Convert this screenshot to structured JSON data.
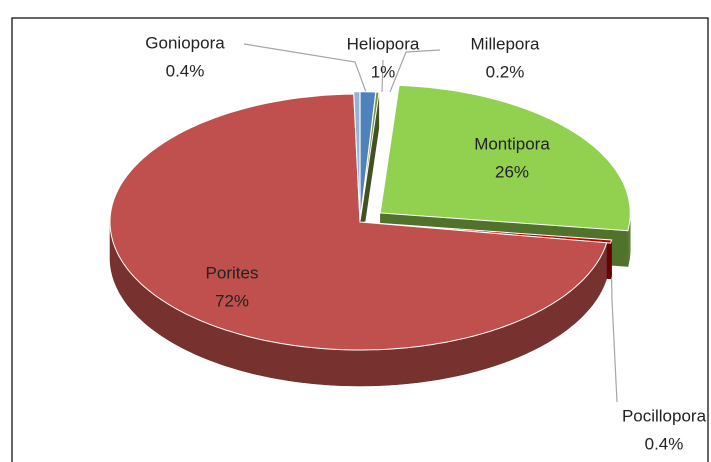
{
  "chart_data": {
    "type": "pie",
    "categories": [
      "Heliopora",
      "Millepora",
      "Montipora",
      "Pocillopora",
      "Porites",
      "Goniopora"
    ],
    "values": [
      1,
      0.2,
      26,
      0.4,
      72,
      0.4
    ],
    "value_labels": [
      "1%",
      "0.2%",
      "26%",
      "0.4%",
      "72%",
      "0.4%"
    ],
    "colors": [
      "#4f81bd",
      "#77933c",
      "#92d050",
      "#c00000",
      "#c0504d",
      "#95b3d7"
    ],
    "exploded": "Montipora"
  }
}
